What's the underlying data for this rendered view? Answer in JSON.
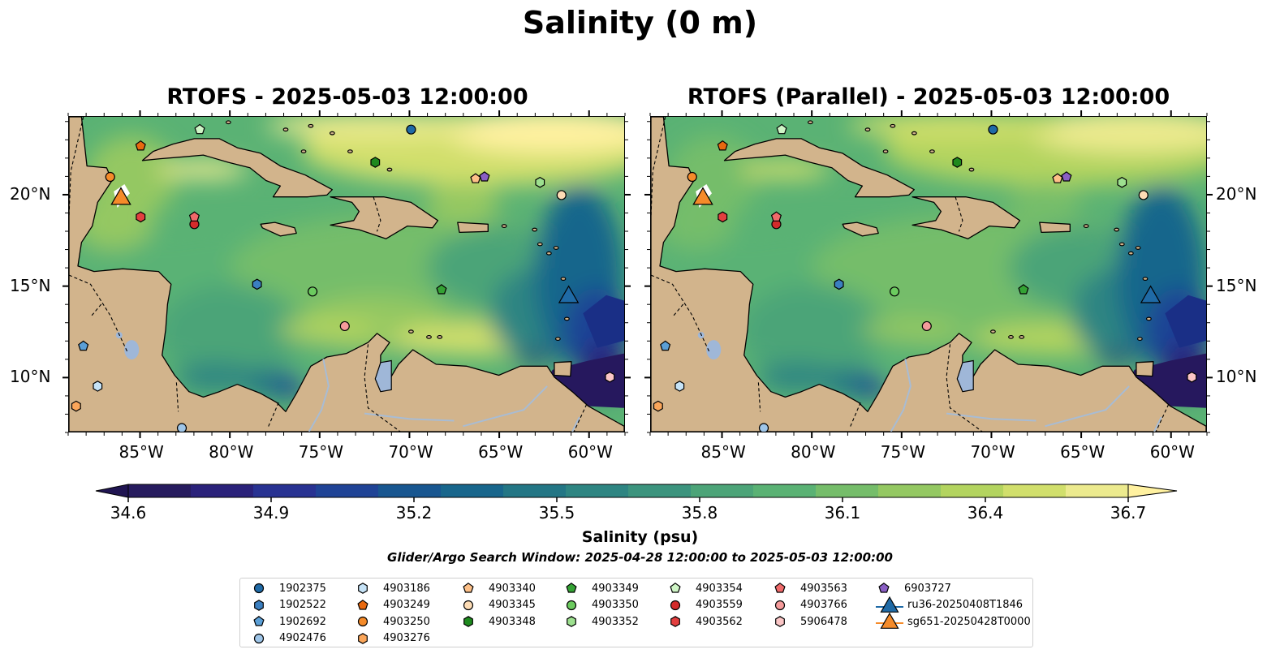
{
  "figure": {
    "suptitle": "Salinity (0 m)",
    "colorbar_label": "Salinity (psu)",
    "search_window": "Glider/Argo Search Window: 2025-04-28 12:00:00 to 2025-05-03 12:00:00"
  },
  "panels": [
    {
      "id": "left",
      "title": "RTOFS - 2025-05-03 12:00:00",
      "lat_tick_side": "left"
    },
    {
      "id": "right",
      "title": "RTOFS (Parallel) - 2025-05-03 12:00:00",
      "lat_tick_side": "right"
    }
  ],
  "axes": {
    "lon_ticks": [
      "85°W",
      "80°W",
      "75°W",
      "70°W",
      "65°W",
      "60°W"
    ],
    "lat_ticks": [
      "20°N",
      "15°N",
      "10°N"
    ],
    "lon_tick_values": [
      -85,
      -80,
      -75,
      -70,
      -65,
      -60
    ],
    "lat_tick_values": [
      20,
      15,
      10
    ],
    "lon_range": [
      -89,
      -58
    ],
    "lat_range": [
      7,
      24.3
    ]
  },
  "colorbar": {
    "min": 34.6,
    "max": 36.7,
    "tick_labels": [
      "34.6",
      "34.9",
      "35.2",
      "35.5",
      "35.8",
      "36.1",
      "36.4",
      "36.7"
    ],
    "tick_values": [
      34.6,
      34.9,
      35.2,
      35.5,
      35.8,
      36.1,
      36.4,
      36.7
    ],
    "colors": [
      "#261b5e",
      "#2a217a",
      "#283292",
      "#1f4396",
      "#185690",
      "#18668c",
      "#237685",
      "#2e8582",
      "#3c947e",
      "#4ca478",
      "#5ab274",
      "#75bd6a",
      "#94c862",
      "#b3d45f",
      "#d1df6c",
      "#ecea8e"
    ],
    "extend": "both",
    "extend_min_color": "#201552",
    "extend_max_color": "#fff1a0"
  },
  "map_style": {
    "land_color": "#d2b48c",
    "lake_color": "#9fb7d8",
    "river_color": "#a8bcd4",
    "deep_low_color": "#26185e",
    "high_salinity_color": "#ffef9e",
    "coast_color": "#000000"
  },
  "legend": [
    {
      "label": "1902375",
      "marker": "circle",
      "color": "#1f6aa6"
    },
    {
      "label": "1902522",
      "marker": "hexagon",
      "color": "#3b7fc0"
    },
    {
      "label": "1902692",
      "marker": "pentagon",
      "color": "#5b9fd6"
    },
    {
      "label": "4902476",
      "marker": "circle",
      "color": "#9ec5e8"
    },
    {
      "label": "4903186",
      "marker": "hexagon",
      "color": "#c6e3f7"
    },
    {
      "label": "4903249",
      "marker": "pentagon",
      "color": "#e8690f"
    },
    {
      "label": "4903250",
      "marker": "circle",
      "color": "#f58b2a"
    },
    {
      "label": "4903276",
      "marker": "hexagon",
      "color": "#fba65a"
    },
    {
      "label": "4903340",
      "marker": "pentagon",
      "color": "#fdc088"
    },
    {
      "label": "4903345",
      "marker": "circle",
      "color": "#fddcb5"
    },
    {
      "label": "4903348",
      "marker": "hexagon",
      "color": "#1e8a1e"
    },
    {
      "label": "4903349",
      "marker": "pentagon",
      "color": "#34a234"
    },
    {
      "label": "4903350",
      "marker": "circle",
      "color": "#6ccb5f"
    },
    {
      "label": "4903352",
      "marker": "hexagon",
      "color": "#9de08f"
    },
    {
      "label": "4903354",
      "marker": "pentagon",
      "color": "#cff5c6"
    },
    {
      "label": "4903559",
      "marker": "circle",
      "color": "#d42b2b"
    },
    {
      "label": "4903562",
      "marker": "hexagon",
      "color": "#e33f3f"
    },
    {
      "label": "4903563",
      "marker": "pentagon",
      "color": "#f06a6a"
    },
    {
      "label": "4903766",
      "marker": "circle",
      "color": "#f59b9b"
    },
    {
      "label": "5906478",
      "marker": "hexagon",
      "color": "#fbc6c6"
    },
    {
      "label": "6903727",
      "marker": "pentagon",
      "color": "#8a5fc4"
    },
    {
      "label": "ru36-20250408T1846",
      "marker": "triangle",
      "color": "#1f6aa6"
    },
    {
      "label": "sg651-20250428T0000",
      "marker": "triangle",
      "color": "#f58b2a"
    }
  ],
  "observations": [
    {
      "id": "1902375",
      "lon": -69.9,
      "lat": 23.6
    },
    {
      "id": "1902522",
      "lon": -78.5,
      "lat": 15.1
    },
    {
      "id": "1902692",
      "lon": -88.2,
      "lat": 11.7
    },
    {
      "id": "4902476",
      "lon": -82.7,
      "lat": 7.2
    },
    {
      "id": "4903186",
      "lon": -87.4,
      "lat": 9.5
    },
    {
      "id": "4903249",
      "lon": -85.0,
      "lat": 22.7
    },
    {
      "id": "4903250",
      "lon": -86.7,
      "lat": 21.0
    },
    {
      "id": "4903276",
      "lon": -88.6,
      "lat": 8.4
    },
    {
      "id": "4903340",
      "lon": -66.3,
      "lat": 20.9
    },
    {
      "id": "4903345",
      "lon": -61.5,
      "lat": 20.0
    },
    {
      "id": "4903348",
      "lon": -71.9,
      "lat": 21.8
    },
    {
      "id": "4903349",
      "lon": -68.2,
      "lat": 14.8
    },
    {
      "id": "4903350",
      "lon": -75.4,
      "lat": 14.7
    },
    {
      "id": "4903352",
      "lon": -62.7,
      "lat": 20.7
    },
    {
      "id": "4903354",
      "lon": -81.7,
      "lat": 23.6
    },
    {
      "id": "4903559",
      "lon": -82.0,
      "lat": 18.4
    },
    {
      "id": "4903562",
      "lon": -85.0,
      "lat": 18.8
    },
    {
      "id": "4903563",
      "lon": -82.0,
      "lat": 18.8
    },
    {
      "id": "4903766",
      "lon": -73.6,
      "lat": 12.8
    },
    {
      "id": "5906478",
      "lon": -58.8,
      "lat": 10.0
    },
    {
      "id": "6903727",
      "lon": -65.8,
      "lat": 21.0
    },
    {
      "id": "ru36-20250408T1846",
      "lon": -61.1,
      "lat": 14.5
    },
    {
      "id": "sg651-20250428T0000",
      "lon": -86.1,
      "lat": 19.9
    }
  ]
}
